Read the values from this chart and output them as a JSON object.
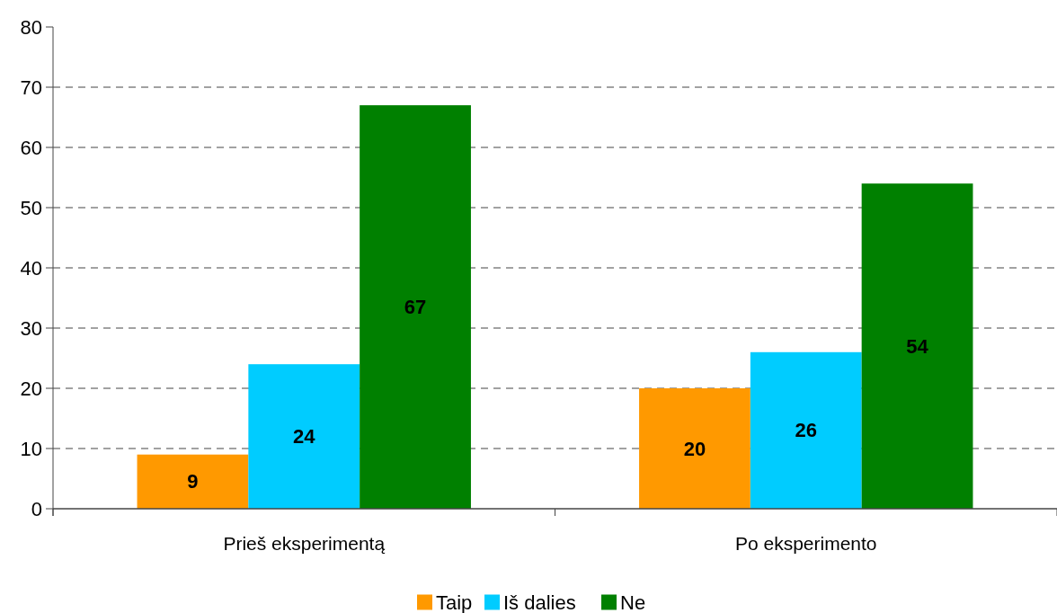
{
  "chart_data": {
    "type": "bar",
    "categories": [
      "Prieš eksperimentą",
      "Po eksperimento"
    ],
    "series": [
      {
        "name": "Taip",
        "color": "#ff9900",
        "values": [
          9,
          20
        ]
      },
      {
        "name": "Iš dalies",
        "color": "#00ccff",
        "values": [
          24,
          26
        ]
      },
      {
        "name": "Ne",
        "color": "#008000",
        "values": [
          67,
          54
        ]
      }
    ],
    "ylim": [
      0,
      80
    ],
    "yticks": [
      0,
      10,
      20,
      30,
      40,
      50,
      60,
      70,
      80
    ],
    "grid": "y",
    "legend": "bottom",
    "data_labels": true
  }
}
